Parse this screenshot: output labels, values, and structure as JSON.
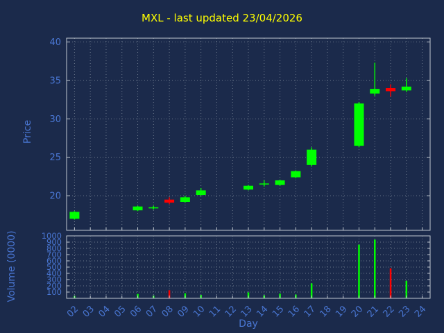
{
  "colors": {
    "background": "#1b2a4b",
    "title": "#ffff00",
    "axis": "#4976d2",
    "grid": "#9aa5b1",
    "frame": "#c0c8d0",
    "up": "#00ff00",
    "down": "#ff0000"
  },
  "chart_data": [
    {
      "type": "candlestick",
      "title": "MXL - last updated 23/04/2026",
      "xlabel": "Day",
      "ylabel": "Price",
      "xlim": [
        1.5,
        24.5
      ],
      "ylim": [
        15.5,
        40.5
      ],
      "grid": true,
      "x_tick_labels": [
        "02",
        "03",
        "04",
        "05",
        "06",
        "07",
        "08",
        "09",
        "10",
        "11",
        "12",
        "13",
        "14",
        "15",
        "16",
        "17",
        "18",
        "19",
        "20",
        "21",
        "22",
        "23",
        "24"
      ],
      "y_ticks": [
        20,
        25,
        30,
        35,
        40
      ],
      "ohlc": [
        {
          "day": 2,
          "open": 17.0,
          "high": 18.0,
          "low": 16.9,
          "close": 17.9
        },
        {
          "day": 6,
          "open": 18.1,
          "high": 18.7,
          "low": 18.0,
          "close": 18.6
        },
        {
          "day": 7,
          "open": 18.4,
          "high": 18.7,
          "low": 18.2,
          "close": 18.5
        },
        {
          "day": 8,
          "open": 19.5,
          "high": 19.8,
          "low": 18.9,
          "close": 19.1
        },
        {
          "day": 9,
          "open": 19.2,
          "high": 20.0,
          "low": 19.1,
          "close": 19.8
        },
        {
          "day": 10,
          "open": 20.1,
          "high": 21.0,
          "low": 20.0,
          "close": 20.7
        },
        {
          "day": 13,
          "open": 20.8,
          "high": 21.4,
          "low": 20.7,
          "close": 21.3
        },
        {
          "day": 14,
          "open": 21.5,
          "high": 22.0,
          "low": 21.2,
          "close": 21.6
        },
        {
          "day": 15,
          "open": 21.4,
          "high": 22.1,
          "low": 21.3,
          "close": 22.0
        },
        {
          "day": 16,
          "open": 22.4,
          "high": 23.3,
          "low": 22.3,
          "close": 23.2
        },
        {
          "day": 17,
          "open": 24.0,
          "high": 26.3,
          "low": 23.8,
          "close": 26.0
        },
        {
          "day": 20,
          "open": 26.5,
          "high": 32.2,
          "low": 26.3,
          "close": 32.0
        },
        {
          "day": 21,
          "open": 33.3,
          "high": 37.3,
          "low": 33.0,
          "close": 33.9
        },
        {
          "day": 22,
          "open": 34.0,
          "high": 34.5,
          "low": 32.9,
          "close": 33.6
        },
        {
          "day": 23,
          "open": 33.7,
          "high": 35.3,
          "low": 33.5,
          "close": 34.2
        }
      ]
    },
    {
      "type": "bar",
      "ylabel": "Volume (0000)",
      "ylim": [
        0,
        1000
      ],
      "grid": true,
      "y_ticks": [
        100,
        200,
        300,
        400,
        500,
        600,
        700,
        800,
        900,
        1000
      ],
      "bars": [
        {
          "day": 2,
          "volume": 40,
          "direction": "up"
        },
        {
          "day": 6,
          "volume": 70,
          "direction": "up"
        },
        {
          "day": 7,
          "volume": 45,
          "direction": "up"
        },
        {
          "day": 8,
          "volume": 130,
          "direction": "down"
        },
        {
          "day": 9,
          "volume": 80,
          "direction": "up"
        },
        {
          "day": 10,
          "volume": 55,
          "direction": "up"
        },
        {
          "day": 13,
          "volume": 95,
          "direction": "up"
        },
        {
          "day": 14,
          "volume": 50,
          "direction": "up"
        },
        {
          "day": 15,
          "volume": 75,
          "direction": "up"
        },
        {
          "day": 16,
          "volume": 60,
          "direction": "up"
        },
        {
          "day": 17,
          "volume": 240,
          "direction": "up"
        },
        {
          "day": 20,
          "volume": 860,
          "direction": "up"
        },
        {
          "day": 21,
          "volume": 940,
          "direction": "up"
        },
        {
          "day": 22,
          "volume": 480,
          "direction": "down"
        },
        {
          "day": 23,
          "volume": 280,
          "direction": "up"
        }
      ]
    }
  ]
}
